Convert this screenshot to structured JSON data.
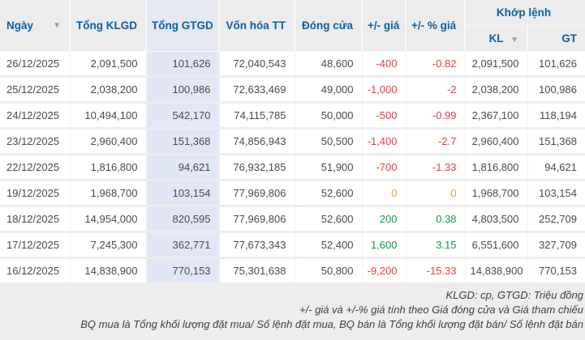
{
  "table": {
    "group_header": "Khớp lệnh",
    "columns": [
      {
        "key": "date",
        "label": "Ngày",
        "sorted": true
      },
      {
        "key": "total_kl",
        "label": "Tổng KLGD",
        "sorted": false
      },
      {
        "key": "total_gt",
        "label": "Tổng GTGD",
        "sorted": false
      },
      {
        "key": "mkt_cap",
        "label": "Vốn hóa TT",
        "sorted": false
      },
      {
        "key": "close",
        "label": "Đóng cửa",
        "sorted": false
      },
      {
        "key": "chg",
        "label": "+/- giá",
        "sorted": false
      },
      {
        "key": "chg_pct",
        "label": "+/- % giá",
        "sorted": false
      },
      {
        "key": "kl",
        "label": "KL",
        "sorted": true
      },
      {
        "key": "gt",
        "label": "GT",
        "sorted": false
      }
    ],
    "rows": [
      {
        "date": "26/12/2025",
        "total_kl": "2,091,500",
        "total_gt": "101,626",
        "mkt_cap": "72,040,543",
        "close": "48,600",
        "chg": "-400",
        "chg_pct": "-0.82",
        "kl": "2,091,500",
        "gt": "101,626",
        "trend": "down"
      },
      {
        "date": "25/12/2025",
        "total_kl": "2,038,200",
        "total_gt": "100,986",
        "mkt_cap": "72,633,469",
        "close": "49,000",
        "chg": "-1,000",
        "chg_pct": "-2",
        "kl": "2,038,200",
        "gt": "100,986",
        "trend": "down"
      },
      {
        "date": "24/12/2025",
        "total_kl": "10,494,100",
        "total_gt": "542,170",
        "mkt_cap": "74,115,785",
        "close": "50,000",
        "chg": "-500",
        "chg_pct": "-0.99",
        "kl": "2,367,100",
        "gt": "118,194",
        "trend": "down"
      },
      {
        "date": "23/12/2025",
        "total_kl": "2,960,400",
        "total_gt": "151,368",
        "mkt_cap": "74,856,943",
        "close": "50,500",
        "chg": "-1,400",
        "chg_pct": "-2.7",
        "kl": "2,960,400",
        "gt": "151,368",
        "trend": "down"
      },
      {
        "date": "22/12/2025",
        "total_kl": "1,816,800",
        "total_gt": "94,621",
        "mkt_cap": "76,932,185",
        "close": "51,900",
        "chg": "-700",
        "chg_pct": "-1.33",
        "kl": "1,816,800",
        "gt": "94,621",
        "trend": "down"
      },
      {
        "date": "19/12/2025",
        "total_kl": "1,968,700",
        "total_gt": "103,154",
        "mkt_cap": "77,969,806",
        "close": "52,600",
        "chg": "0",
        "chg_pct": "0",
        "kl": "1,968,700",
        "gt": "103,154",
        "trend": "flat"
      },
      {
        "date": "18/12/2025",
        "total_kl": "14,954,000",
        "total_gt": "820,595",
        "mkt_cap": "77,969,806",
        "close": "52,600",
        "chg": "200",
        "chg_pct": "0.38",
        "kl": "4,803,500",
        "gt": "252,709",
        "trend": "up"
      },
      {
        "date": "17/12/2025",
        "total_kl": "7,245,300",
        "total_gt": "362,771",
        "mkt_cap": "77,673,343",
        "close": "52,400",
        "chg": "1,600",
        "chg_pct": "3.15",
        "kl": "6,551,600",
        "gt": "327,709",
        "trend": "up"
      },
      {
        "date": "16/12/2025",
        "total_kl": "14,838,900",
        "total_gt": "770,153",
        "mkt_cap": "75,301,638",
        "close": "50,800",
        "chg": "-9,200",
        "chg_pct": "-15.33",
        "kl": "14,838,900",
        "gt": "770,153",
        "trend": "down"
      }
    ]
  },
  "footnotes": [
    "KLGD: cp, GTGD: Triệu đồng",
    "+/- giá và +/-% giá tính theo Giá đóng cửa và Giá tham chiếu",
    "BQ mua là Tổng khối lượng đặt mua/ Số lệnh đặt mua, BQ bán là Tổng khối lượng đặt bán/ Số lệnh đặt bán"
  ],
  "icons": {
    "sort_desc": "▼"
  },
  "colors": {
    "header_text": "#0b5fa5",
    "highlight_column": "#e2e7f8",
    "down": "#ee3b3b",
    "up": "#0e9d51",
    "flat": "#f59f27"
  }
}
